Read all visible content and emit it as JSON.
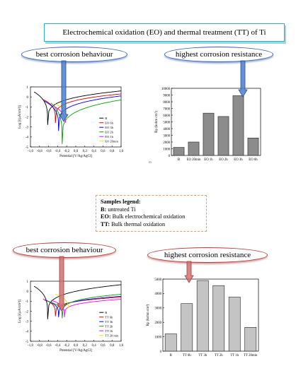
{
  "header": {
    "title": "Electrochemical oxidation (EO) and thermal treatment (TT) of Ti"
  },
  "callouts": {
    "eo_best": "best corrosion behaviour",
    "eo_highest": "highest corrosion resistance",
    "tt_best": "best corrosion  behaviour",
    "tt_highest": "highest corrosion resistance"
  },
  "samples_legend": {
    "heading": "Samples legend:",
    "items": [
      {
        "key": "B:",
        "text": " untreated Ti"
      },
      {
        "key": "EO:",
        "text": " Bulk electrochemical oxidation"
      },
      {
        "key": "TT:",
        "text": " Bulk thermal oxidation"
      }
    ]
  },
  "colors": {
    "title_border": "#2ab0c8",
    "blue_arrow": "#4a7fd0",
    "red_arrow": "#d07070",
    "bar": "#8c8c8c",
    "bar_light": "#c4c4c4"
  },
  "stray_mark": "m",
  "chart_data": [
    {
      "id": "eo_tafel",
      "type": "line",
      "xlabel": "Potential [V/Ag/AgCl]",
      "ylabel": "Log [i(µA/cm²)]",
      "xlim": [
        -1.0,
        1.0
      ],
      "ylim": [
        -5,
        1
      ],
      "xticks": [
        "-1,0",
        "-0,8",
        "-0,6",
        "-0,4",
        "-0,2",
        "0,0",
        "0,2",
        "0,4",
        "0,6",
        "0,8",
        "1,0"
      ],
      "yticks": [
        "1",
        "0",
        "-1",
        "-2",
        "-3",
        "-4",
        "-5"
      ],
      "series": [
        {
          "name": "B",
          "color": "#000000",
          "ecorr": -0.62,
          "imin": -2.8,
          "cath_end": 0.5,
          "anod_end": 0.6,
          "x_start": -0.92
        },
        {
          "name": "EO 6h",
          "color": "#e00000",
          "ecorr": -0.45,
          "imin": -2.6,
          "cath_end": -0.2,
          "anod_end": 0.3,
          "x_start": -0.75
        },
        {
          "name": "EO 3h",
          "color": "#0000ee",
          "ecorr": -0.38,
          "imin": -3.4,
          "cath_end": -0.4,
          "anod_end": 0.1,
          "x_start": -0.7
        },
        {
          "name": "EO 2h",
          "color": "#00a000",
          "ecorr": -0.3,
          "imin": -4.7,
          "cath_end": -0.6,
          "anod_end": -0.3,
          "x_start": -0.55
        },
        {
          "name": "EO 1h",
          "color": "#ff00ff",
          "ecorr": -0.22,
          "imin": -3.5,
          "cath_end": -0.9,
          "anod_end": -0.1,
          "x_start": -0.5
        },
        {
          "name": "EO 20min",
          "color": "#e8e800",
          "ecorr": -0.18,
          "imin": -3.0,
          "cath_end": -0.7,
          "anod_end": 0.05,
          "x_start": -0.45
        }
      ]
    },
    {
      "id": "eo_rp",
      "type": "bar",
      "ylabel": "Rp (kohm cm²)",
      "ylim": [
        0,
        10000
      ],
      "yticks": [
        "0",
        "1000",
        "2000",
        "3000",
        "4000",
        "5000",
        "6000",
        "7000",
        "8000",
        "9000",
        "10000"
      ],
      "categories": [
        "B",
        "EO 20min",
        "EO 1h",
        "EO 2h",
        "EO 3h",
        "EO 6h"
      ],
      "values": [
        1200,
        2000,
        6300,
        5800,
        8900,
        2600
      ]
    },
    {
      "id": "tt_tafel",
      "type": "line",
      "xlabel": "Potential [V/Ag/AgCl]",
      "ylabel": "Log [i(µA/cm²)]",
      "xlim": [
        -1.0,
        1.0
      ],
      "ylim": [
        -5,
        1
      ],
      "xticks": [
        "-1,0",
        "-0,8",
        "-0,6",
        "-0,4",
        "-0,2",
        "0,0",
        "0,2",
        "0,4",
        "0,6",
        "0,8",
        "1,0"
      ],
      "yticks": [
        "1",
        "0",
        "-1",
        "-2",
        "-3",
        "-4",
        "-5"
      ],
      "series": [
        {
          "name": "B",
          "color": "#000000",
          "ecorr": -0.62,
          "imin": -2.8,
          "cath_end": 0.5,
          "anod_end": 0.65,
          "x_start": -0.92
        },
        {
          "name": "TT 6h",
          "color": "#e00000",
          "ecorr": -0.45,
          "imin": -2.5,
          "cath_end": -0.8,
          "anod_end": -0.6,
          "x_start": -0.72
        },
        {
          "name": "TT 3h",
          "color": "#0000ee",
          "ecorr": -0.38,
          "imin": -2.6,
          "cath_end": -0.9,
          "anod_end": -0.5,
          "x_start": -0.68
        },
        {
          "name": "TT 2h",
          "color": "#00a000",
          "ecorr": -0.3,
          "imin": -2.7,
          "cath_end": -1.0,
          "anod_end": -0.3,
          "x_start": -0.62
        },
        {
          "name": "TT 1h",
          "color": "#ff00ff",
          "ecorr": -0.25,
          "imin": -2.6,
          "cath_end": -0.9,
          "anod_end": -0.8,
          "x_start": -0.55
        },
        {
          "name": "TT 20 min",
          "color": "#e8e800",
          "ecorr": -0.15,
          "imin": -2.4,
          "cath_end": -0.3,
          "anod_end": 0.0,
          "x_start": -0.45
        }
      ]
    },
    {
      "id": "tt_rp",
      "type": "bar",
      "ylabel": "Rp (kohm cm²)",
      "ylim": [
        0,
        5000
      ],
      "yticks": [
        "0",
        "1000",
        "2000",
        "3000",
        "4000",
        "5000"
      ],
      "categories": [
        "B",
        "TT 6h",
        "TT 3h",
        "TT 2h",
        "TT 1h",
        "TT 20min"
      ],
      "values": [
        1200,
        3300,
        4900,
        4550,
        3750,
        1650
      ]
    }
  ]
}
